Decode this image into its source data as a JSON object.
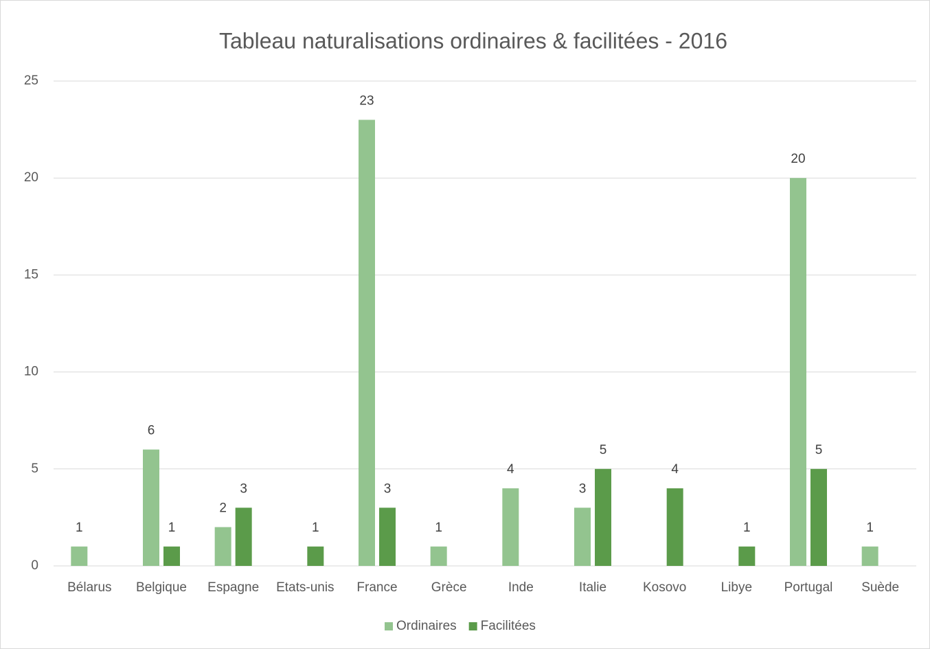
{
  "chart_data": {
    "type": "bar",
    "title": "Tableau naturalisations ordinaires & facilitées - 2016",
    "categories": [
      "Bélarus",
      "Belgique",
      "Espagne",
      "Etats-unis",
      "France",
      "Grèce",
      "Inde",
      "Italie",
      "Kosovo",
      "Libye",
      "Portugal",
      "Suède"
    ],
    "series": [
      {
        "name": "Ordinaires",
        "color": "#93c48f",
        "values": [
          1,
          6,
          2,
          null,
          23,
          1,
          4,
          3,
          null,
          null,
          20,
          1
        ]
      },
      {
        "name": "Facilitées",
        "color": "#5b9b4a",
        "values": [
          null,
          1,
          3,
          1,
          3,
          null,
          null,
          5,
          4,
          1,
          5,
          null
        ]
      }
    ],
    "ylim": [
      0,
      25
    ],
    "yticks": [
      0,
      5,
      10,
      15,
      20,
      25
    ],
    "grid": true,
    "legend": "bottom"
  }
}
